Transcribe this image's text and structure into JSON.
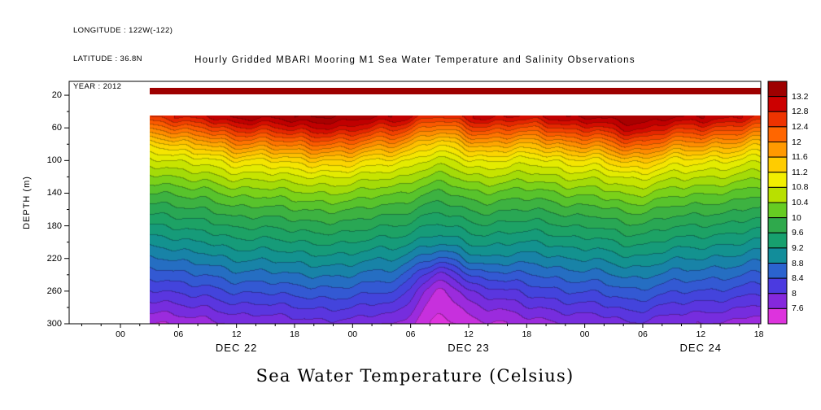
{
  "header": {
    "info_lines": [
      "LONGITUDE : 122W(-122)",
      "LATITUDE : 36.8N",
      "YEAR : 2012"
    ]
  },
  "chart_data": {
    "type": "heatmap",
    "title": "Hourly Gridded MBARI Mooring M1 Sea Water Temperature and Salinity Observations",
    "caption": "Sea Water Temperature (Celsius)",
    "ylabel": "DEPTH (m)",
    "units": "Celsius",
    "x_axis": {
      "range_hours": [
        -5.3,
        66.2
      ],
      "tick_hours": [
        0,
        6,
        12,
        18,
        24,
        30,
        36,
        42,
        48,
        54,
        60,
        66
      ],
      "tick_labels": [
        "00",
        "06",
        "12",
        "18",
        "00",
        "06",
        "12",
        "18",
        "00",
        "06",
        "12",
        "18"
      ],
      "date_labels": [
        {
          "hour": 12,
          "label": "DEC 22"
        },
        {
          "hour": 36,
          "label": "DEC 23"
        },
        {
          "hour": 60,
          "label": "DEC 24"
        }
      ]
    },
    "y_axis": {
      "range_m": [
        3,
        300
      ],
      "ticks": [
        20,
        60,
        100,
        140,
        180,
        220,
        260,
        300
      ]
    },
    "levels": {
      "min_c": 7.6,
      "max_c": 13.2,
      "step_c": 0.4,
      "labels_top_to_bottom": [
        "13.2",
        "12.8",
        "12.4",
        "12",
        "11.6",
        "11.2",
        "10.8",
        "10.4",
        "10",
        "9.6",
        "9.2",
        "8.8",
        "8.4",
        "8",
        "7.6"
      ]
    },
    "palette_top_to_bottom": [
      "#9e0000",
      "#cc0000",
      "#ee3300",
      "#ff6600",
      "#ff9900",
      "#ffcc00",
      "#f2ee00",
      "#b8e000",
      "#66cc22",
      "#2fa94c",
      "#17a06e",
      "#128d9a",
      "#2b63cf",
      "#4b3ae0",
      "#8528dd",
      "#dd33dd"
    ],
    "surface_strip": {
      "depth_top_m": 11,
      "depth_bottom_m": 19,
      "value_c": 13.4
    },
    "no_data_before_hour": 3,
    "grid": {
      "time_hours_from_dec22_0000": [
        3,
        8,
        13,
        18,
        23,
        28,
        33,
        38,
        43,
        48,
        53,
        58,
        63,
        66
      ],
      "depths_m": [
        45,
        60,
        80,
        100,
        120,
        140,
        160,
        180,
        200,
        220,
        240,
        260,
        280,
        300
      ],
      "temps_c": [
        [
          12.6,
          13.0,
          13.3,
          13.4,
          13.4,
          13.2,
          12.68,
          13.1,
          13.0,
          13.3,
          13.4,
          13.3,
          13.08,
          12.88
        ],
        [
          12.0,
          12.4,
          12.72,
          12.88,
          13.0,
          12.6,
          12.08,
          12.5,
          12.4,
          12.72,
          13.04,
          12.72,
          12.48,
          12.28
        ],
        [
          11.2,
          11.6,
          11.92,
          12.08,
          12.2,
          11.8,
          11.28,
          11.7,
          11.6,
          11.92,
          12.24,
          11.92,
          11.68,
          11.48
        ],
        [
          10.7,
          10.9,
          11.14,
          11.28,
          11.4,
          11.05,
          10.74,
          11.0,
          10.9,
          11.14,
          11.44,
          11.14,
          10.96,
          10.85
        ],
        [
          10.3,
          10.5,
          10.66,
          10.74,
          10.8,
          10.6,
          10.34,
          10.56,
          10.5,
          10.66,
          10.82,
          10.66,
          10.54,
          10.44
        ],
        [
          9.95,
          10.1,
          10.26,
          10.34,
          10.4,
          10.2,
          9.98,
          10.16,
          10.1,
          10.26,
          10.42,
          10.26,
          10.14,
          10.06
        ],
        [
          9.65,
          9.8,
          9.92,
          9.98,
          10.03,
          9.88,
          9.68,
          9.85,
          9.8,
          9.92,
          10.04,
          9.92,
          9.83,
          9.76
        ],
        [
          9.35,
          9.5,
          9.62,
          9.68,
          9.73,
          9.58,
          9.38,
          9.55,
          9.5,
          9.62,
          9.74,
          9.62,
          9.53,
          9.46
        ],
        [
          9.05,
          9.2,
          9.32,
          9.38,
          9.43,
          9.28,
          9.08,
          9.25,
          9.2,
          9.32,
          9.44,
          9.32,
          9.23,
          9.16
        ],
        [
          8.75,
          8.9,
          9.02,
          9.08,
          9.13,
          8.98,
          8.6,
          8.95,
          8.9,
          9.02,
          9.14,
          9.02,
          8.93,
          8.86
        ],
        [
          8.45,
          8.6,
          8.72,
          8.78,
          8.83,
          8.68,
          8.0,
          8.5,
          8.6,
          8.72,
          8.84,
          8.72,
          8.63,
          8.56
        ],
        [
          8.15,
          8.3,
          8.42,
          8.48,
          8.53,
          8.38,
          7.6,
          8.1,
          8.3,
          8.42,
          8.54,
          8.42,
          8.33,
          8.26
        ],
        [
          7.85,
          8.0,
          8.12,
          8.18,
          8.23,
          8.08,
          7.45,
          7.8,
          8.0,
          8.12,
          8.24,
          8.12,
          8.03,
          7.96
        ],
        [
          7.55,
          7.7,
          7.82,
          7.88,
          7.93,
          7.78,
          7.35,
          7.55,
          7.7,
          7.82,
          7.94,
          7.82,
          7.73,
          7.64
        ]
      ]
    }
  }
}
